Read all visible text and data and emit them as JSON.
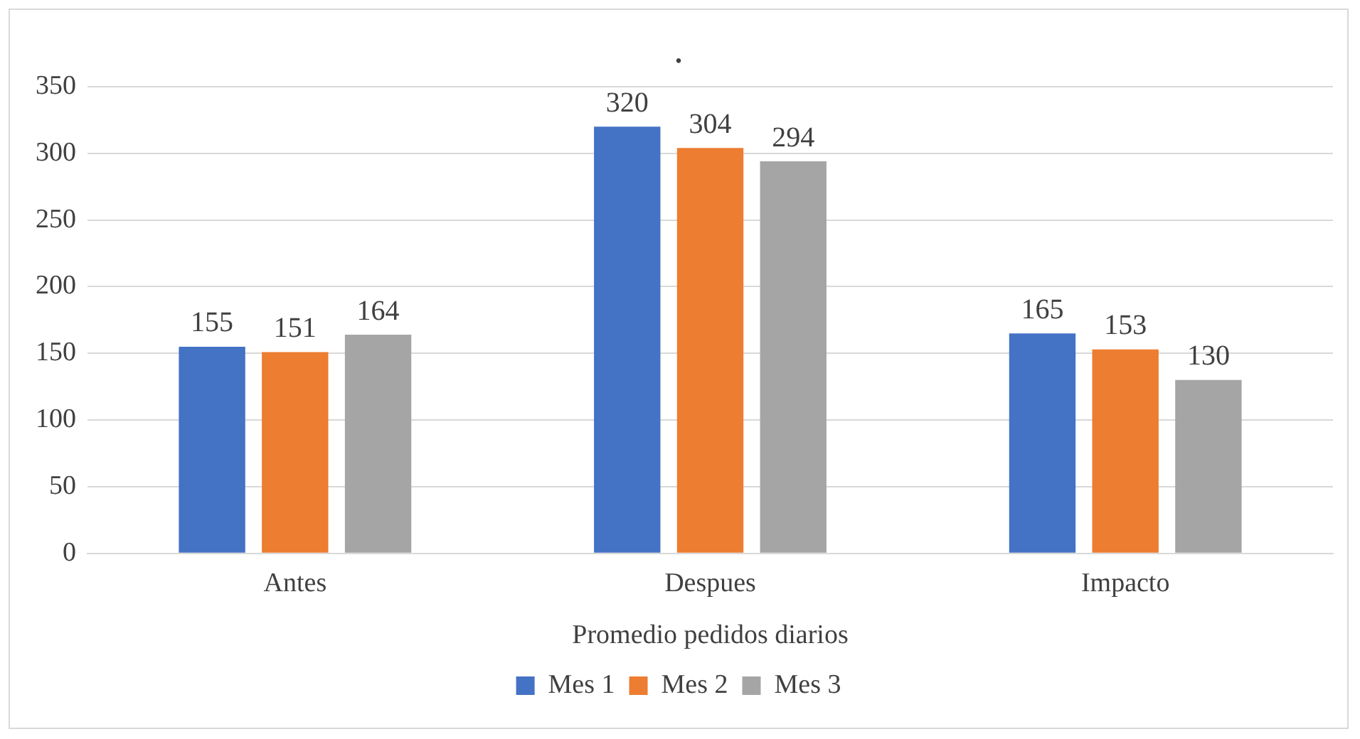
{
  "chart_data": {
    "type": "bar",
    "title": ".",
    "xlabel": "Promedio pedidos diarios",
    "categories": [
      "Antes",
      "Despues",
      "Impacto"
    ],
    "series": [
      {
        "name": "Mes 1",
        "color": "#4472c4",
        "values": [
          155,
          320,
          165
        ]
      },
      {
        "name": "Mes 2",
        "color": "#ed7d31",
        "values": [
          151,
          304,
          153
        ]
      },
      {
        "name": "Mes 3",
        "color": "#a5a5a5",
        "values": [
          164,
          294,
          130
        ]
      }
    ],
    "ylim": [
      0,
      350
    ],
    "yticks": [
      0,
      50,
      100,
      150,
      200,
      250,
      300,
      350
    ],
    "grid": "y",
    "legend": "bottom",
    "data_labels": true
  }
}
